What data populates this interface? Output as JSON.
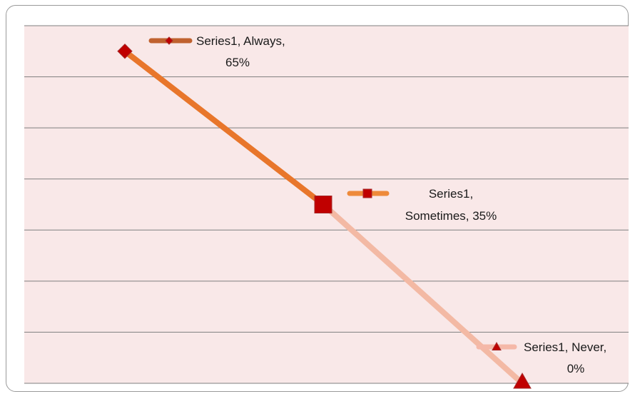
{
  "chart_data": {
    "type": "line",
    "series_name": "Series1",
    "categories": [
      "Always",
      "Sometimes",
      "Never"
    ],
    "values": [
      65,
      35,
      0
    ],
    "data_labels": [
      [
        "Series1, Always,",
        "65%"
      ],
      [
        "Series1,",
        "Sometimes, 35%"
      ],
      [
        "Series1, Never,",
        "0%"
      ]
    ],
    "ylim": [
      0,
      70
    ],
    "grid": true,
    "legend": "none",
    "colors": {
      "plot_background": "#f9e8e8",
      "gridline": "#7f7f7f",
      "line_segment_1": "#e8762b",
      "line_segment_2": "#f3b9a4",
      "marker": "#c00000",
      "marker_edge": "#a52a2a",
      "legend_key_1": "#c0622f",
      "legend_key_2": "#ee8a3a",
      "legend_key_3": "#f5b8a8"
    },
    "markers": [
      "diamond",
      "square",
      "triangle"
    ]
  }
}
